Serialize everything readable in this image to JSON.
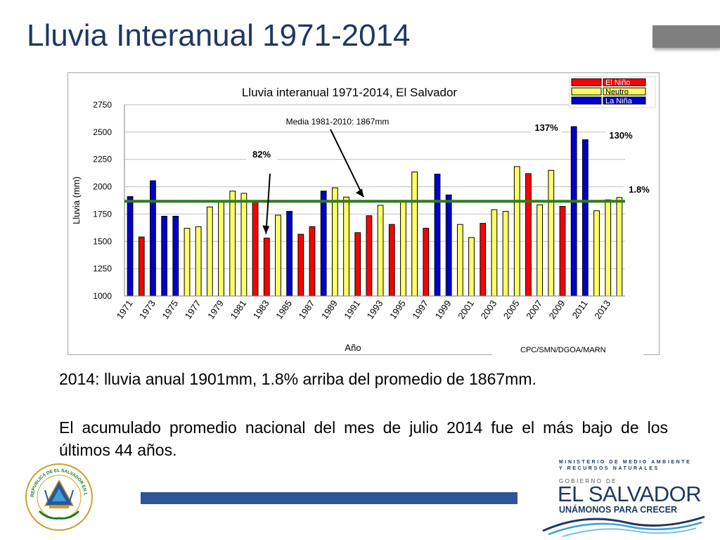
{
  "slide": {
    "title": "Lluvia Interanual 1971-2014",
    "caption1": "2014: lluvia anual 1901mm, 1.8% arriba del promedio de 1867mm.",
    "caption2": "El acumulado promedio nacional del mes de julio 2014 fue el más bajo de los últimos  44 años.",
    "source": "CPC/SMN/DGOA/MARN"
  },
  "seal": {
    "text": "REPUBLICA DE EL SALVADOR EN LA AMERICA CENTRAL"
  },
  "gov_logo": {
    "line1": "MINISTERIO DE MEDIO AMBIENTE",
    "line2": "Y RECURSOS NATURALES",
    "small": "GOBIERNO DE",
    "big": "EL SALVADOR",
    "slogan": "UNÁMONOS PARA CRECER"
  },
  "colors": {
    "title": "#1f3864",
    "nino": "#ff0000",
    "neutro": "#ffff66",
    "nina": "#0000cc",
    "mean_line": "#2e7d1e",
    "footer_bar": "#2e5597"
  },
  "chart_data": {
    "type": "bar",
    "title": "Lluvia interanual 1971-2014, El Salvador",
    "xlabel": "Año",
    "ylabel": "Lluvia (mm)",
    "ylim": [
      1000,
      2750
    ],
    "yticks": [
      1000,
      1250,
      1500,
      1750,
      2000,
      2250,
      2500,
      2750
    ],
    "grid": true,
    "legend_position": "top-right",
    "legend": [
      {
        "name": "El Niño",
        "class": "nino"
      },
      {
        "name": "Neutro",
        "class": "neutro"
      },
      {
        "name": "La Niña",
        "class": "nina"
      }
    ],
    "categories": [
      1971,
      1972,
      1973,
      1974,
      1975,
      1976,
      1977,
      1978,
      1979,
      1980,
      1981,
      1982,
      1983,
      1984,
      1985,
      1986,
      1987,
      1988,
      1989,
      1990,
      1991,
      1992,
      1993,
      1994,
      1995,
      1996,
      1997,
      1998,
      1999,
      2000,
      2001,
      2002,
      2003,
      2004,
      2005,
      2006,
      2007,
      2008,
      2009,
      2010,
      2011,
      2012,
      2013,
      2014
    ],
    "xtick_labels": [
      "1971",
      "1973",
      "1975",
      "1977",
      "1979",
      "1981",
      "1983",
      "1985",
      "1987",
      "1989",
      "1991",
      "1993",
      "1995",
      "1997",
      "1999",
      "2001",
      "2003",
      "2005",
      "2007",
      "2009",
      "2011",
      "2013"
    ],
    "values": [
      1910,
      1540,
      2055,
      1730,
      1730,
      1620,
      1635,
      1815,
      1860,
      1960,
      1940,
      1870,
      1530,
      1740,
      1775,
      1565,
      1635,
      1960,
      1990,
      1905,
      1580,
      1735,
      1830,
      1655,
      1870,
      2135,
      1620,
      2115,
      1925,
      1655,
      1535,
      1665,
      1790,
      1775,
      2185,
      2120,
      1835,
      2150,
      1820,
      2550,
      2430,
      1780,
      1880,
      1901
    ],
    "enso_class": [
      "nina",
      "nino",
      "nina",
      "nina",
      "nina",
      "neutro",
      "neutro",
      "neutro",
      "neutro",
      "neutro",
      "neutro",
      "nino",
      "nino",
      "neutro",
      "nina",
      "nino",
      "nino",
      "nina",
      "neutro",
      "neutro",
      "nino",
      "nino",
      "neutro",
      "nino",
      "neutro",
      "neutro",
      "nino",
      "nina",
      "nina",
      "neutro",
      "neutro",
      "nino",
      "neutro",
      "neutro",
      "neutro",
      "nino",
      "neutro",
      "neutro",
      "nino",
      "nina",
      "nina",
      "neutro",
      "neutro",
      "neutro"
    ],
    "mean": {
      "value": 1867,
      "label": "Media 1981-2010: 1867mm"
    },
    "annotations": [
      {
        "text": "82%",
        "year": 1983
      },
      {
        "text": "137%",
        "year": 2010
      },
      {
        "text": "130%",
        "year": 2011
      },
      {
        "text": "1.8%",
        "year": 2014
      }
    ]
  }
}
